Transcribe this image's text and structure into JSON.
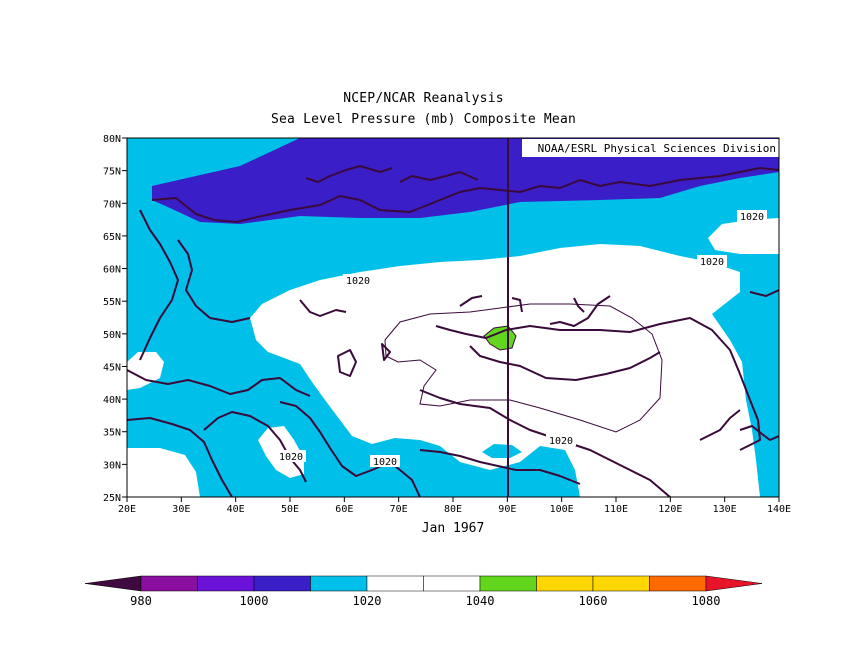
{
  "chart_data": {
    "type": "heatmap",
    "title": "NCEP/NCAR Reanalysis",
    "subtitle": "Sea Level Pressure (mb) Composite Mean",
    "credit": "NOAA/ESRL Physical Sciences Division",
    "period_label": "Jan 1967",
    "x_axis": {
      "range": [
        20,
        140
      ],
      "ticks": [
        "20E",
        "30E",
        "40E",
        "50E",
        "60E",
        "70E",
        "80E",
        "90E",
        "100E",
        "110E",
        "120E",
        "130E",
        "140E"
      ]
    },
    "y_axis": {
      "range": [
        25,
        80
      ],
      "ticks": [
        "25N",
        "30N",
        "35N",
        "40N",
        "45N",
        "50N",
        "55N",
        "60N",
        "65N",
        "70N",
        "75N",
        "80N"
      ]
    },
    "contour_labels": [
      "1020",
      "1020",
      "1020",
      "1020",
      "1020",
      "1020"
    ],
    "colorbar": {
      "levels": [
        980,
        990,
        1000,
        1010,
        1020,
        1030,
        1040,
        1050,
        1060,
        1070,
        1080
      ],
      "tick_labels": [
        "980",
        "1000",
        "1020",
        "1040",
        "1060",
        "1080"
      ],
      "colors": [
        "#3f0a3f",
        "#8b0f9e",
        "#6a12d8",
        "#3a1ec8",
        "#00bfe8",
        "#ffffff",
        "#ffffff",
        "#62d61c",
        "#ffd700",
        "#ffd700",
        "#ff6a00",
        "#e8142a"
      ]
    },
    "colors": {
      "low_band": "#3a1ec8",
      "mid_band": "#00bfe8",
      "high_band": "#ffffff",
      "peak": "#62d61c",
      "coast": "#3a0a3a"
    }
  }
}
